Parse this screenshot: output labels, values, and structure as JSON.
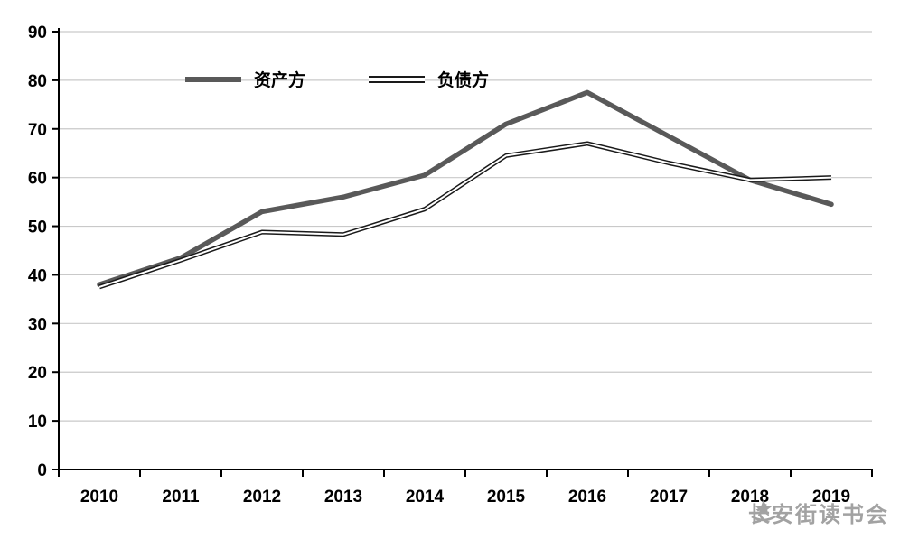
{
  "chart_data": {
    "type": "line",
    "categories": [
      "2010",
      "2011",
      "2012",
      "2013",
      "2014",
      "2015",
      "2016",
      "2017",
      "2018",
      "2019"
    ],
    "series": [
      {
        "name": "资产方",
        "style": "thick-gray",
        "values": [
          38,
          43.5,
          53,
          56,
          60.5,
          71,
          77.5,
          68.5,
          59.5,
          54.5
        ]
      },
      {
        "name": "负债方",
        "style": "double-black",
        "values": [
          37.5,
          43,
          48.8,
          48.3,
          53.5,
          64.5,
          67,
          63,
          59.5,
          60
        ]
      }
    ],
    "title": "",
    "xlabel": "",
    "ylabel": "",
    "ylim": [
      0,
      90
    ],
    "yticks": [
      0,
      10,
      20,
      30,
      40,
      50,
      60,
      70,
      80,
      90
    ],
    "grid": "horizontal",
    "legend_position": "top-inside"
  },
  "legend": {
    "assets_label": "资产方",
    "liabilities_label": "负债方"
  },
  "watermark": {
    "text": "长安街读书会",
    "logo": "star-emblem-icon"
  },
  "colors": {
    "assets_line": "#595959",
    "liabilities_outer": "#1a1a1a",
    "liabilities_inner": "#ffffff",
    "grid": "#c9c9c9",
    "axis": "#000000",
    "tick_label": "#000000",
    "watermark": "#9b9b9b",
    "background": "#ffffff"
  }
}
